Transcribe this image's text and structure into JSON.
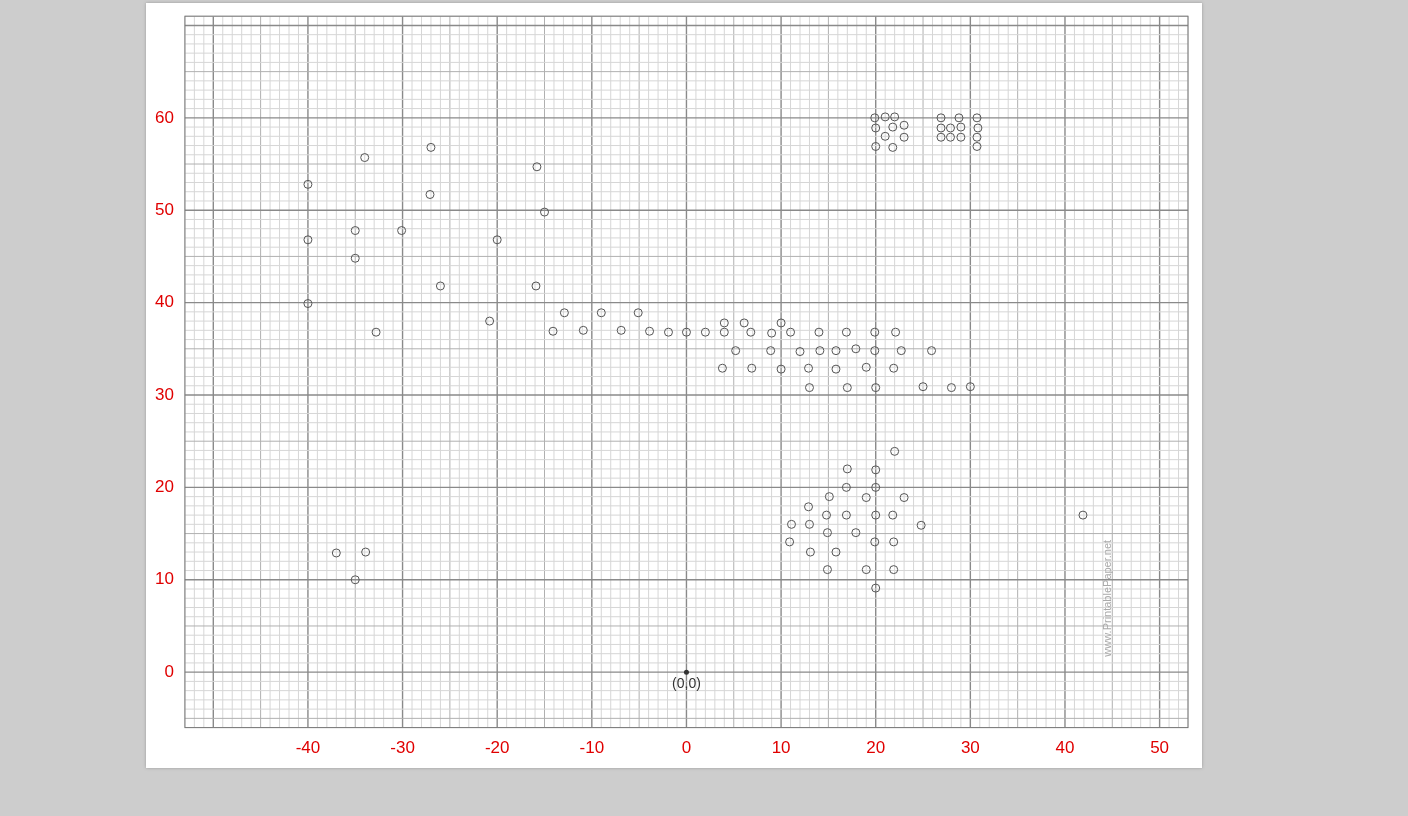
{
  "chart_data": {
    "type": "scatter",
    "marker": "circle",
    "color": "#555555",
    "grid": true,
    "tick_labels": true,
    "xlim": [
      -53,
      53
    ],
    "ylim": [
      -6,
      71
    ],
    "xticks": [
      -40,
      -30,
      -20,
      -10,
      0,
      10,
      20,
      30,
      40,
      50
    ],
    "yticks": [
      0,
      10,
      20,
      30,
      40,
      50,
      60
    ],
    "annotations": [
      {
        "text": "(0,0)",
        "x": 0,
        "y": 0
      },
      {
        "text": "www.PrintablePaper.net",
        "x": 44.5,
        "y": 8
      }
    ],
    "x": [
      -40,
      -40,
      -40,
      -34,
      -35,
      -35,
      -32.8,
      -30.1,
      -27,
      -27.1,
      -26,
      -20,
      -20.8,
      -15.8,
      -15,
      -15.9,
      -12.9,
      -14.1,
      -10.9,
      -9,
      -6.9,
      -5.1,
      -3.9,
      -1.9,
      0,
      2,
      4,
      4,
      6.1,
      6.8,
      9,
      10,
      11,
      14,
      16.9,
      19.9,
      22.1,
      5.2,
      8.9,
      12,
      14.1,
      15.8,
      17.9,
      19.9,
      22.7,
      25.9,
      3.8,
      6.9,
      10,
      12.9,
      15.8,
      19,
      21.9,
      13,
      17,
      20,
      25,
      28,
      30,
      19.9,
      21,
      22,
      20,
      21.8,
      23,
      21,
      23,
      20,
      21.8,
      26.9,
      28.8,
      30.7,
      26.9,
      27.9,
      29,
      30.8,
      26.9,
      27.9,
      29,
      30.7,
      30.7,
      22,
      17,
      20,
      20,
      16.9,
      19,
      23,
      15.1,
      12.9,
      14.8,
      16.9,
      20,
      21.8,
      11.1,
      13,
      24.8,
      14.9,
      17.9,
      19.9,
      21.9,
      10.9,
      13.1,
      15.8,
      14.9,
      19,
      21.9,
      20,
      41.9,
      -37,
      -33.9,
      -35
    ],
    "values": [
      52.8,
      46.8,
      39.9,
      55.7,
      47.8,
      44.8,
      36.8,
      47.8,
      56.8,
      51.7,
      41.8,
      46.8,
      38,
      54.7,
      49.8,
      41.8,
      38.9,
      36.9,
      37,
      38.9,
      37,
      38.9,
      36.9,
      36.8,
      36.8,
      36.8,
      37.8,
      36.8,
      37.8,
      36.8,
      36.7,
      37.8,
      36.8,
      36.8,
      36.8,
      36.8,
      36.8,
      34.8,
      34.8,
      34.7,
      34.8,
      34.8,
      35,
      34.8,
      34.8,
      34.8,
      32.9,
      32.9,
      32.8,
      32.9,
      32.8,
      33,
      32.9,
      30.8,
      30.8,
      30.8,
      30.9,
      30.8,
      30.9,
      60,
      60.1,
      60.1,
      58.9,
      59,
      59.2,
      58,
      57.9,
      56.9,
      56.8,
      60,
      60,
      60,
      58.9,
      58.9,
      59,
      58.9,
      57.9,
      57.9,
      57.9,
      57.9,
      56.9,
      23.9,
      22,
      21.9,
      20,
      20,
      18.9,
      18.9,
      19,
      17.9,
      17,
      17,
      17,
      17,
      16,
      16,
      15.9,
      15.1,
      15.1,
      14.1,
      14.1,
      14.1,
      13,
      13,
      11.1,
      11.1,
      11.1,
      9.1,
      17,
      12.9,
      13,
      10
    ]
  }
}
